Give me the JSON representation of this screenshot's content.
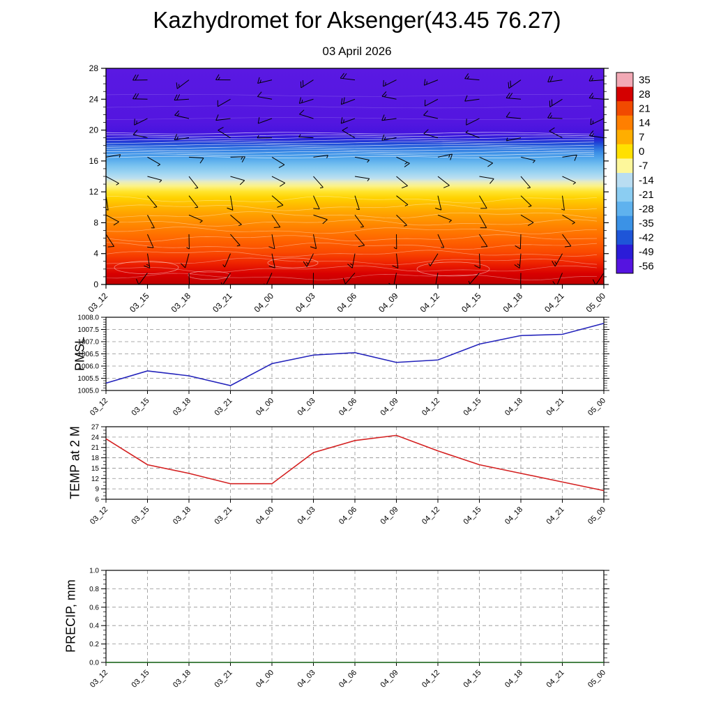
{
  "title": "Kazhydromet for Aksenger(43.45 76.27)",
  "subtitle": "03 April 2026",
  "time_labels": [
    "03_12",
    "03_15",
    "03_18",
    "03_21",
    "04_00",
    "04_03",
    "04_06",
    "04_09",
    "04_12",
    "04_15",
    "04_18",
    "04_21",
    "05_00"
  ],
  "chart_data": [
    {
      "type": "heatmap",
      "name": "temperature-height-cross-section-with-wind-barbs",
      "x": [
        "03_12",
        "03_15",
        "03_18",
        "03_21",
        "04_00",
        "04_03",
        "04_06",
        "04_09",
        "04_12",
        "04_15",
        "04_18",
        "04_21",
        "05_00"
      ],
      "y_ticks": [
        0,
        4,
        8,
        12,
        16,
        20,
        24,
        28
      ],
      "ylim": [
        0,
        28
      ],
      "profile_temp_by_height": [
        {
          "h": 0,
          "t": 30
        },
        {
          "h": 4,
          "t": 21
        },
        {
          "h": 8,
          "t": 13
        },
        {
          "h": 12,
          "t": 0
        },
        {
          "h": 14,
          "t": -12
        },
        {
          "h": 16,
          "t": -20
        },
        {
          "h": 18,
          "t": -34
        },
        {
          "h": 19,
          "t": -46
        },
        {
          "h": 20,
          "t": -55
        },
        {
          "h": 28,
          "t": -58
        }
      ],
      "gradient_stops": [
        {
          "offset": 0.0,
          "color": "#bf0000"
        },
        {
          "offset": 0.05,
          "color": "#d80000"
        },
        {
          "offset": 0.1,
          "color": "#ef2400"
        },
        {
          "offset": 0.15,
          "color": "#fa4a00"
        },
        {
          "offset": 0.21,
          "color": "#ff6600"
        },
        {
          "offset": 0.27,
          "color": "#ff8400"
        },
        {
          "offset": 0.32,
          "color": "#ff9e00"
        },
        {
          "offset": 0.36,
          "color": "#ffb600"
        },
        {
          "offset": 0.4,
          "color": "#ffd200"
        },
        {
          "offset": 0.43,
          "color": "#ffe52e"
        },
        {
          "offset": 0.455,
          "color": "#fcf285"
        },
        {
          "offset": 0.475,
          "color": "#e8ecc0"
        },
        {
          "offset": 0.49,
          "color": "#bfe0ef"
        },
        {
          "offset": 0.515,
          "color": "#9fd5f2"
        },
        {
          "offset": 0.55,
          "color": "#79c2f0"
        },
        {
          "offset": 0.58,
          "color": "#55aaec"
        },
        {
          "offset": 0.61,
          "color": "#3c8fe6"
        },
        {
          "offset": 0.635,
          "color": "#2a6ade"
        },
        {
          "offset": 0.655,
          "color": "#1f44d6"
        },
        {
          "offset": 0.675,
          "color": "#2a1dd8"
        },
        {
          "offset": 0.7,
          "color": "#4614de"
        },
        {
          "offset": 0.75,
          "color": "#5316e0"
        },
        {
          "offset": 1.0,
          "color": "#5a19e2"
        }
      ],
      "colorbar_ticks": [
        "35",
        "28",
        "21",
        "14",
        "7",
        "0",
        "-7",
        "-14",
        "-21",
        "-28",
        "-35",
        "-42",
        "-49",
        "-56"
      ],
      "colorbar_colors": [
        "#f2a9b5",
        "#d40000",
        "#f14a00",
        "#ff7f00",
        "#ffae00",
        "#ffe000",
        "#fdf79b",
        "#b9ddf2",
        "#8bcdf2",
        "#5fb2ee",
        "#3b92e6",
        "#1e55d8",
        "#2b1cd8",
        "#5514e0"
      ],
      "wind_levels": [
        {
          "h": 1.5,
          "dir": 200,
          "kt": 10
        },
        {
          "h": 4,
          "dir": 190,
          "kt": 12
        },
        {
          "h": 6.5,
          "dir": 160,
          "kt": 10
        },
        {
          "h": 9,
          "dir": 130,
          "kt": 8
        },
        {
          "h": 11.5,
          "dir": 150,
          "kt": 10
        },
        {
          "h": 14,
          "dir": 120,
          "kt": 10
        },
        {
          "h": 16.5,
          "dir": 100,
          "kt": 12
        },
        {
          "h": 19,
          "dir": 280,
          "kt": 12
        },
        {
          "h": 21.5,
          "dir": 265,
          "kt": 15
        },
        {
          "h": 24,
          "dir": 260,
          "kt": 18
        },
        {
          "h": 26.5,
          "dir": 255,
          "kt": 20
        }
      ]
    },
    {
      "type": "line",
      "name": "PMSL",
      "ylabel": "PMSL",
      "categories": [
        "03_12",
        "03_15",
        "03_18",
        "03_21",
        "04_00",
        "04_03",
        "04_06",
        "04_09",
        "04_12",
        "04_15",
        "04_18",
        "04_21",
        "05_00"
      ],
      "values": [
        1005.3,
        1005.8,
        1005.6,
        1005.2,
        1006.1,
        1006.45,
        1006.55,
        1006.15,
        1006.25,
        1006.9,
        1007.25,
        1007.3,
        1007.75
      ],
      "ylim": [
        1005.0,
        1008.0
      ],
      "yticks": [
        1005.0,
        1005.5,
        1006.0,
        1006.5,
        1007.0,
        1007.5,
        1008.0
      ],
      "ytick_labels": [
        "1005.0",
        "1005.5",
        "1006.0",
        "1006.5",
        "1007.0",
        "1007.5",
        "1008.0"
      ],
      "minor_step": 0.1,
      "color": "#2222bb"
    },
    {
      "type": "line",
      "name": "TEMP at 2 M",
      "ylabel": "TEMP at 2 M",
      "categories": [
        "03_12",
        "03_15",
        "03_18",
        "03_21",
        "04_00",
        "04_03",
        "04_06",
        "04_09",
        "04_12",
        "04_15",
        "04_18",
        "04_21",
        "05_00"
      ],
      "values": [
        23.5,
        16,
        13.5,
        10.5,
        10.5,
        19.5,
        23,
        24.5,
        20,
        16,
        13.5,
        11,
        8.5
      ],
      "ylim": [
        6,
        27
      ],
      "yticks": [
        6,
        9,
        12,
        15,
        18,
        21,
        24,
        27
      ],
      "ytick_labels": [
        "6",
        "9",
        "12",
        "15",
        "18",
        "21",
        "24",
        "27"
      ],
      "minor_step": 1,
      "color": "#d42020"
    },
    {
      "type": "line",
      "name": "PRECIP, mm",
      "ylabel": "PRECIP, mm",
      "categories": [
        "03_12",
        "03_15",
        "03_18",
        "03_21",
        "04_00",
        "04_03",
        "04_06",
        "04_09",
        "04_12",
        "04_15",
        "04_18",
        "04_21",
        "05_00"
      ],
      "values": [
        0,
        0,
        0,
        0,
        0,
        0,
        0,
        0,
        0,
        0,
        0,
        0,
        0
      ],
      "ylim": [
        0,
        1.0
      ],
      "yticks": [
        0,
        0.2,
        0.4,
        0.6,
        0.8,
        1.0
      ],
      "ytick_labels": [
        "0.0",
        "0.2",
        "0.4",
        "0.6",
        "0.8",
        "1.0"
      ],
      "minor_step": 0.05,
      "color": "#1c6b1c"
    }
  ]
}
